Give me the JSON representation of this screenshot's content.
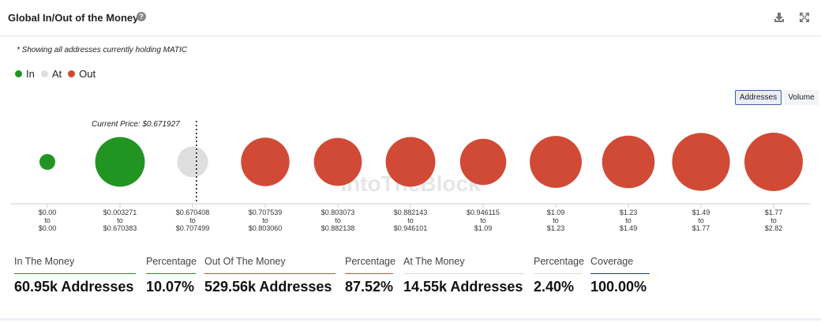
{
  "header": {
    "title": "Global In/Out of the Money",
    "help_icon": "question-circle-icon",
    "download_icon": "download-icon",
    "expand_icon": "expand-icon"
  },
  "note": "* Showing all addresses currently holding MATIC",
  "legend": [
    {
      "label": "In",
      "color": "#229422"
    },
    {
      "label": "At",
      "color": "#dedede"
    },
    {
      "label": "Out",
      "color": "#d14a35"
    }
  ],
  "toggles": {
    "addresses": "Addresses",
    "volume": "Volume",
    "selected": "Addresses"
  },
  "current_price_label": "Current Price: $0.671927",
  "watermark": "IntoTheBlock",
  "chart_data": {
    "type": "bubble",
    "title": "Global In/Out of the Money",
    "current_price": 0.671927,
    "current_price_marker_after_index": 2,
    "categories": [
      {
        "from": "$0.00",
        "to": "$0.00",
        "status": "In",
        "relative_size": 0.27
      },
      {
        "from": "$0.003271",
        "to": "$0.670383",
        "status": "In",
        "relative_size": 0.85
      },
      {
        "from": "$0.670408",
        "to": "$0.707499",
        "status": "At",
        "relative_size": 0.53
      },
      {
        "from": "$0.707539",
        "to": "$0.803060",
        "status": "Out",
        "relative_size": 0.83
      },
      {
        "from": "$0.803073",
        "to": "$0.882138",
        "status": "Out",
        "relative_size": 0.82
      },
      {
        "from": "$0.882143",
        "to": "$0.946101",
        "status": "Out",
        "relative_size": 0.85
      },
      {
        "from": "$0.946115",
        "to": "$1.09",
        "status": "Out",
        "relative_size": 0.79
      },
      {
        "from": "$1.09",
        "to": "$1.23",
        "status": "Out",
        "relative_size": 0.89
      },
      {
        "from": "$1.23",
        "to": "$1.49",
        "status": "Out",
        "relative_size": 0.9
      },
      {
        "from": "$1.49",
        "to": "$1.77",
        "status": "Out",
        "relative_size": 0.99
      },
      {
        "from": "$1.77",
        "to": "$2.82",
        "status": "Out",
        "relative_size": 1.0
      }
    ],
    "to_word": "to",
    "colors": {
      "In": "#229422",
      "At": "#dedede",
      "Out": "#d14a35"
    }
  },
  "stats": [
    {
      "label": "In The Money",
      "value": "60.95k Addresses",
      "color": "#229422"
    },
    {
      "label": "Percentage",
      "value": "10.07%",
      "color": "#229422"
    },
    {
      "label": "Out Of The Money",
      "value": "529.56k Addresses",
      "color": "#d14a35"
    },
    {
      "label": "Percentage",
      "value": "87.52%",
      "color": "#d14a35"
    },
    {
      "label": "At The Money",
      "value": "14.55k Addresses",
      "color": "#dedede"
    },
    {
      "label": "Percentage",
      "value": "2.40%",
      "color": "#dedede"
    },
    {
      "label": "Coverage",
      "value": "100.00%",
      "color": "#2233aa"
    }
  ]
}
